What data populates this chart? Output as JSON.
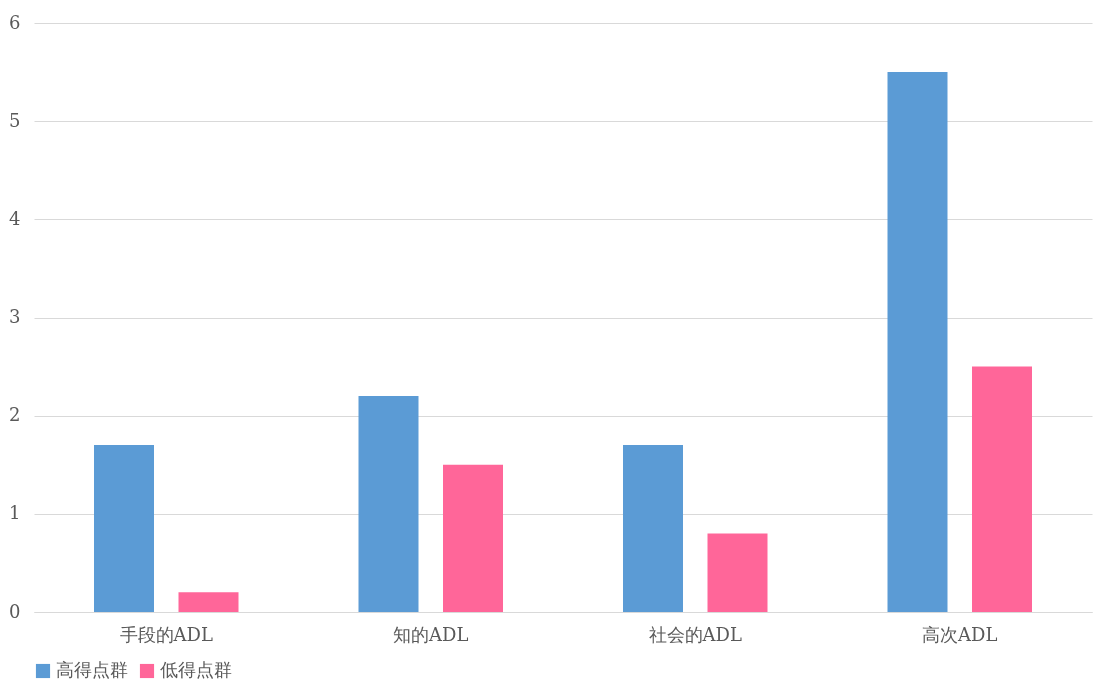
{
  "chart_data": {
    "type": "bar",
    "categories": [
      "手段的ADL",
      "知的ADL",
      "社会的ADL",
      "高次ADL"
    ],
    "series": [
      {
        "name": "高得点群",
        "color": "#5b9bd5",
        "values": [
          1.7,
          2.2,
          1.7,
          5.5
        ]
      },
      {
        "name": "低得点群",
        "color": "#ff6699",
        "values": [
          0.2,
          1.5,
          0.8,
          2.5
        ]
      }
    ],
    "ylim": [
      0,
      6
    ],
    "yticks": [
      0,
      1,
      2,
      3,
      4,
      5,
      6
    ],
    "grid": "y",
    "legend": "bottom"
  }
}
